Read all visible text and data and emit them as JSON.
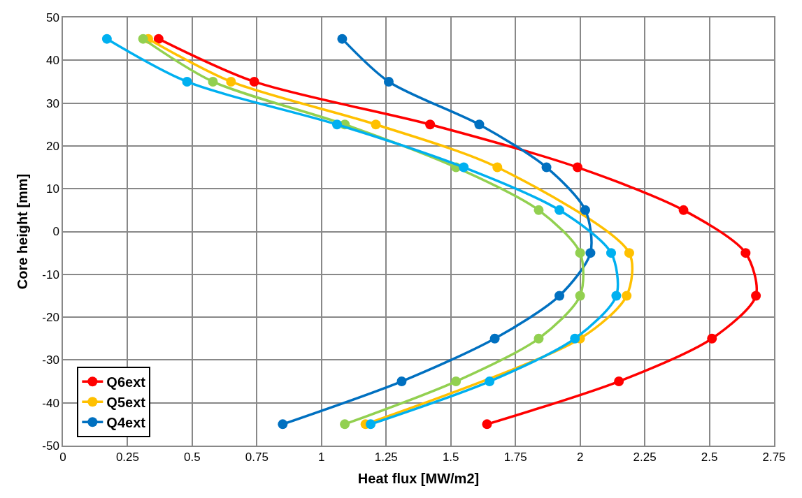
{
  "chart_data": {
    "type": "line",
    "xlabel": "Heat flux [MW/m2]",
    "ylabel": "Core height [mm]",
    "xlim": [
      0,
      2.75
    ],
    "xticks": [
      0,
      0.25,
      0.5,
      0.75,
      1,
      1.25,
      1.5,
      1.75,
      2,
      2.25,
      2.5,
      2.75
    ],
    "ylim": [
      -50,
      50
    ],
    "yticks": [
      -50,
      -40,
      -30,
      -20,
      -10,
      0,
      10,
      20,
      30,
      40,
      50
    ],
    "grid": true,
    "legend": "bottom left",
    "marker": "circle",
    "line_style": "solid",
    "series": [
      {
        "name": "Q6ext",
        "color": "#ff0000",
        "x": [
          0.37,
          0.74,
          1.42,
          1.99,
          2.4,
          2.64,
          2.68,
          2.51,
          2.15,
          1.64
        ],
        "values": [
          45,
          35,
          25,
          15,
          5,
          -5,
          -15,
          -25,
          -35,
          -45
        ]
      },
      {
        "name": "Q5ext",
        "color": "#ffc000",
        "x": [
          0.33,
          0.65,
          1.21,
          1.68,
          2.19,
          2.18,
          2.0,
          1.17
        ],
        "values": [
          45,
          35,
          25,
          15,
          -5,
          -15,
          -25,
          -45
        ]
      },
      {
        "name": "Q4ext",
        "color": "#0070c0",
        "x": [
          1.08,
          1.26,
          1.61,
          1.87,
          2.02,
          2.04,
          1.92,
          1.67,
          1.31,
          0.85
        ],
        "values": [
          45,
          35,
          25,
          15,
          5,
          -5,
          -15,
          -25,
          -35,
          -45
        ]
      },
      {
        "color": "#92d050",
        "x": [
          0.31,
          0.58,
          1.09,
          1.52,
          1.84,
          2.0,
          2.0,
          1.84,
          1.52,
          1.09
        ],
        "values": [
          45,
          35,
          25,
          15,
          5,
          -5,
          -15,
          -25,
          -35,
          -45
        ]
      },
      {
        "color": "#00b0f0",
        "x": [
          0.17,
          0.48,
          1.06,
          1.55,
          1.92,
          2.12,
          2.14,
          1.98,
          1.65,
          1.19
        ],
        "values": [
          45,
          35,
          25,
          15,
          5,
          -5,
          -15,
          -25,
          -35,
          -45
        ]
      }
    ]
  }
}
